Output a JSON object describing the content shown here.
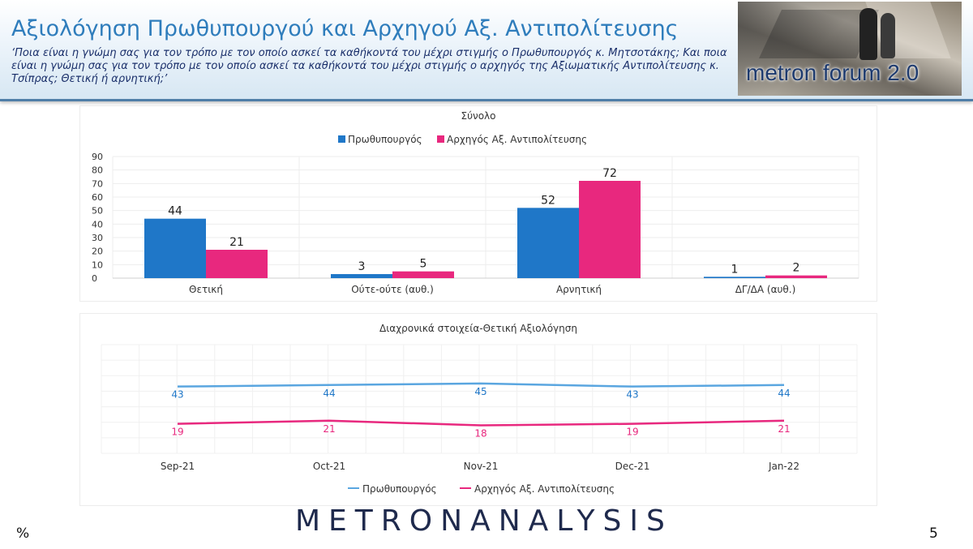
{
  "header": {
    "title": "Αξιολόγηση Πρωθυπουργού και Αρχηγού Αξ. Αντιπολίτευσης",
    "subtitle": "‘Ποια είναι η γνώμη σας για τον τρόπο με τον οποίο ασκεί τα καθήκοντά του μέχρι στιγμής ο Πρωθυπουργός κ. Μητσοτάκης; Και ποια είναι η γνώμη σας για τον τρόπο με τον οποίο ασκεί τα καθήκοντά του μέχρι στιγμής ο αρχηγός της Αξιωματικής Αντιπολίτευσης κ. Τσίπρας; Θετική ή αρνητική;’",
    "logo_text": "metron forum 2.0"
  },
  "footer": {
    "brand_part1": "METRON",
    "brand_part2": "ANALYSIS",
    "percent_label": "%",
    "page_number": "5"
  },
  "colors": {
    "pm": "#1f77c8",
    "opposition": "#e8287e",
    "pm_line": "#5aa6e0",
    "opposition_line": "#e8287e"
  },
  "chart_data": [
    {
      "type": "bar",
      "title": "Σύνολο",
      "categories": [
        "Θετική",
        "Ούτε-ούτε (αυθ.)",
        "Αρνητική",
        "ΔΓ/ΔΑ (αυθ.)"
      ],
      "series": [
        {
          "name": "Πρωθυπουργός",
          "values": [
            44,
            3,
            52,
            1
          ]
        },
        {
          "name": "Αρχηγός Αξ. Αντιπολίτευσης",
          "values": [
            21,
            5,
            72,
            2
          ]
        }
      ],
      "ylim": [
        0,
        90
      ],
      "yticks": [
        0,
        10,
        20,
        30,
        40,
        50,
        60,
        70,
        80,
        90
      ],
      "legend": "top-center",
      "grid": true
    },
    {
      "type": "line",
      "title": "Διαχρονικά στοιχεία-Θετική Αξιολόγηση",
      "categories": [
        "Sep-21",
        "Oct-21",
        "Nov-21",
        "Dec-21",
        "Jan-22"
      ],
      "series": [
        {
          "name": "Πρωθυπουργός",
          "values": [
            43,
            44,
            45,
            43,
            44
          ]
        },
        {
          "name": "Αρχηγός Αξ. Αντιπολίτευσης",
          "values": [
            19,
            21,
            18,
            19,
            21
          ]
        }
      ],
      "legend": "bottom-center",
      "grid": true
    }
  ]
}
